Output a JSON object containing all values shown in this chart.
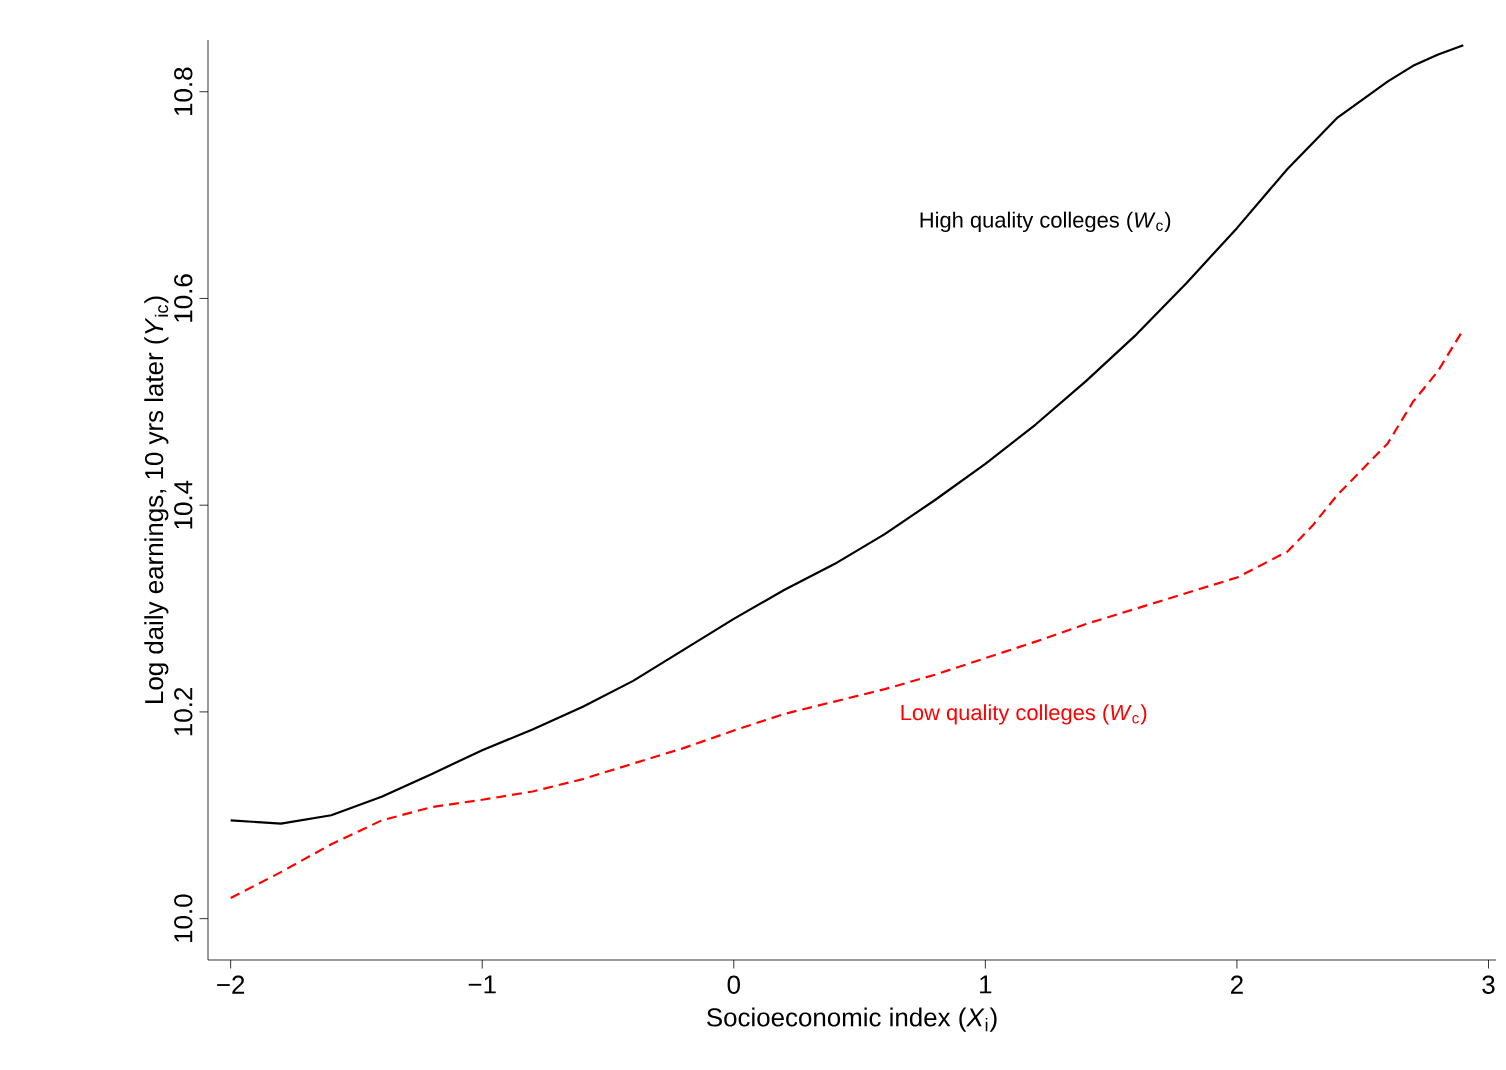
{
  "chart_data": {
    "type": "line",
    "xlabel": "Socioeconomic index (*X*$_{i}$)",
    "ylabel": "Log daily earnings, 10 yrs later (*Y*$_{ic}$)",
    "xlim": [
      -2.09,
      3.03
    ],
    "ylim": [
      9.96,
      10.85
    ],
    "xticks": [
      {
        "value": -2,
        "label": "−2"
      },
      {
        "value": -1,
        "label": "−1"
      },
      0,
      1,
      2,
      3
    ],
    "yticks": [
      {
        "value": 10,
        "label": "10.0"
      },
      10.2,
      10.4,
      10.6,
      10.8
    ],
    "grid": false,
    "marker": "none",
    "series": [
      {
        "name": "High quality colleges (*W*$_{c}$)",
        "color": "#000000",
        "line_style": "solid",
        "x": [
          -2,
          -1.8,
          -1.6,
          -1.4,
          -1.2,
          -1,
          -0.8,
          -0.6,
          -0.4,
          -0.2,
          0,
          0.2,
          0.4,
          0.6,
          0.8,
          1,
          1.2,
          1.4,
          1.6,
          1.8,
          2,
          2.2,
          2.4,
          2.6,
          2.7,
          2.8,
          2.9
        ],
        "values": [
          10.095,
          10.092,
          10.1,
          10.118,
          10.14,
          10.163,
          10.183,
          10.205,
          10.23,
          10.26,
          10.29,
          10.318,
          10.343,
          10.372,
          10.405,
          10.44,
          10.478,
          10.52,
          10.565,
          10.615,
          10.668,
          10.725,
          10.775,
          10.81,
          10.825,
          10.836,
          10.845
        ]
      },
      {
        "name": "Low quality colleges (*W*$_{c}$)",
        "color": "#ff0000",
        "line_style": "dashed",
        "x": [
          -2,
          -1.8,
          -1.6,
          -1.4,
          -1.2,
          -1,
          -0.8,
          -0.6,
          -0.4,
          -0.2,
          0,
          0.2,
          0.4,
          0.6,
          0.8,
          1,
          1.2,
          1.4,
          1.6,
          1.8,
          2,
          2.2,
          2.3,
          2.4,
          2.6,
          2.7,
          2.8,
          2.9
        ],
        "values": [
          10.02,
          10.045,
          10.072,
          10.095,
          10.108,
          10.115,
          10.123,
          10.135,
          10.15,
          10.165,
          10.182,
          10.198,
          10.21,
          10.222,
          10.236,
          10.252,
          10.268,
          10.285,
          10.3,
          10.315,
          10.33,
          10.355,
          10.38,
          10.41,
          10.46,
          10.5,
          10.53,
          10.57
        ]
      }
    ]
  }
}
